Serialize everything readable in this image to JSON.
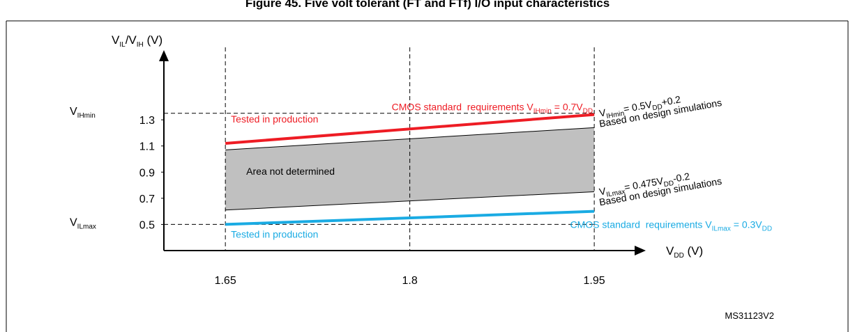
{
  "title": "Figure 45. Five volt tolerant (FT and FTf) I/O input characteristics",
  "footer": "MS31123V2",
  "chart_data": {
    "type": "line",
    "y_label": [
      "V",
      "IL",
      "/V",
      "IH",
      " (V)"
    ],
    "x_label": [
      "V",
      "DD",
      " (V)"
    ],
    "xlim": [
      1.6,
      1.98
    ],
    "xticks": [
      1.65,
      1.8,
      1.95
    ],
    "ylim": [
      0.3,
      1.7
    ],
    "yticks": [
      0.5,
      0.7,
      0.9,
      1.1,
      1.3
    ],
    "grid": true,
    "x": [
      1.65,
      1.95
    ],
    "series": [
      {
        "color": "#ee1c24",
        "values": [
          1.12,
          1.34
        ],
        "label": [
          "CMOS standard  requirements V",
          "IHmin",
          " = 0.7V",
          "DD"
        ],
        "note": "Tested in production"
      },
      {
        "color": "#1aabe3",
        "values": [
          0.5,
          0.6
        ],
        "label": [
          "CMOS standard  requirements V",
          "ILmax",
          " = 0.3V",
          "DD"
        ],
        "note": "Tested in production"
      }
    ],
    "area": {
      "upper": [
        1.07,
        1.24
      ],
      "lower": [
        0.61,
        0.75
      ],
      "color": "#c0c0c0",
      "label": "Area not determined"
    },
    "ref_lines": [
      {
        "value": 1.35,
        "label": [
          "V",
          "IHmin"
        ]
      },
      {
        "value": 0.5,
        "label": [
          "V",
          "ILmax"
        ]
      }
    ],
    "notes": [
      {
        "value": 1.35,
        "lines": [
          [
            "V",
            "IHmin",
            "= 0.5V",
            "DD",
            "+0.2"
          ],
          [
            "Based on design simulations"
          ]
        ]
      },
      {
        "value": 0.75,
        "lines": [
          [
            "V",
            "ILmax",
            "= 0.475V",
            "DD",
            "-0.2"
          ],
          [
            "Based on design simulations"
          ]
        ]
      }
    ]
  }
}
